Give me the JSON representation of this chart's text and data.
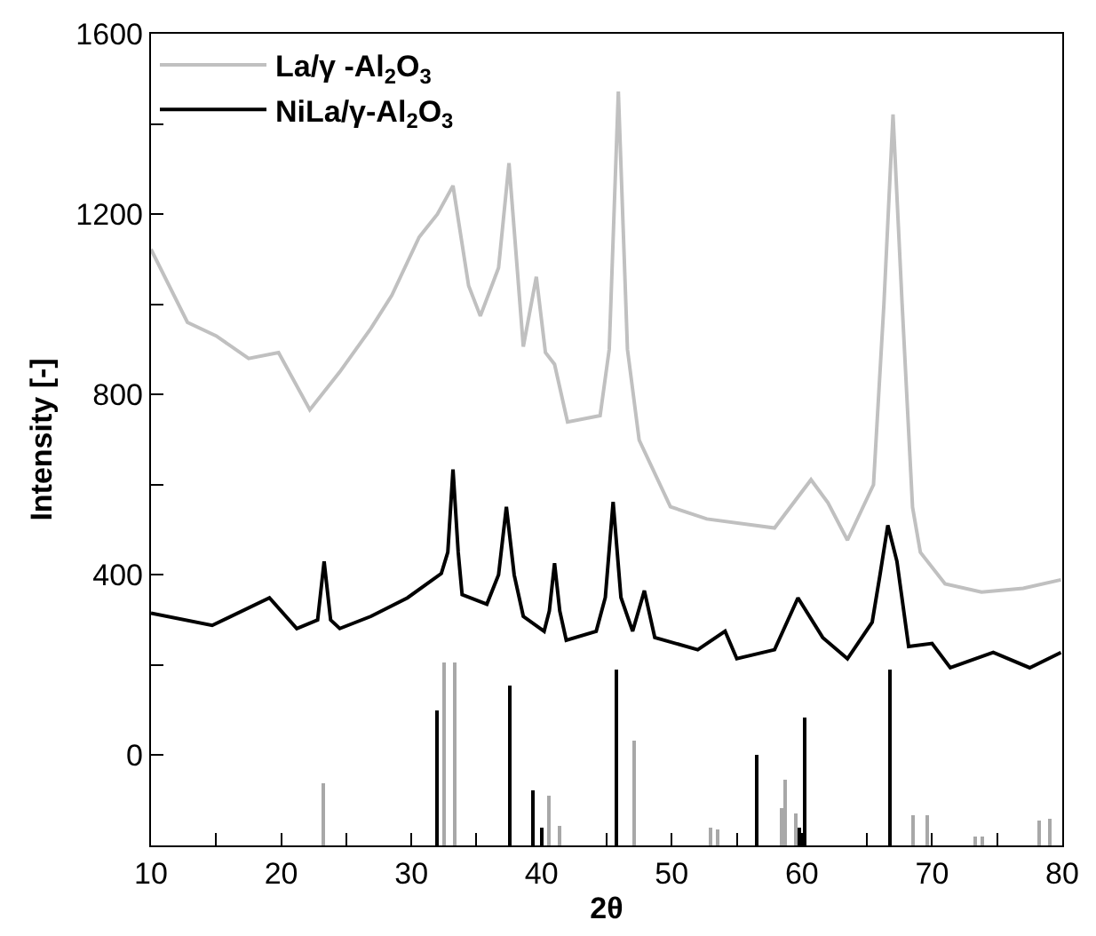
{
  "chart_data": {
    "type": "line",
    "xlabel": "2θ",
    "ylabel": "Intensity [-]",
    "xlim": [
      10,
      80
    ],
    "ylim": [
      -200,
      1600
    ],
    "xticks": [
      10,
      {
        "value": 15,
        "label": null
      },
      20,
      {
        "value": 25,
        "label": null
      },
      30,
      {
        "value": 35,
        "label": null
      },
      40,
      {
        "value": 45,
        "label": null
      },
      50,
      {
        "value": 55,
        "label": null
      },
      60,
      {
        "value": 65,
        "label": null
      },
      70,
      {
        "value": 75,
        "label": null
      },
      80
    ],
    "yticks": [
      {
        "value": -200,
        "label": null
      },
      0,
      {
        "value": 200,
        "label": null
      },
      400,
      {
        "value": 600,
        "label": null
      },
      800,
      {
        "value": 1000,
        "label": null
      },
      1200,
      {
        "value": 1400,
        "label": null
      },
      1600
    ],
    "grid": false,
    "legend": "top left",
    "marker": "none",
    "line_style": "solid",
    "series": [
      {
        "name": "La/γ -Al$_{2}$O$_{3}$",
        "color": "#c0c0c0",
        "x": [
          10,
          12.8,
          15,
          17.5,
          19.8,
          22.2,
          24.5,
          26.9,
          28.5,
          30.6,
          32,
          33.2,
          34.4,
          35.3,
          36.7,
          37.5,
          38.6,
          39.6,
          40.3,
          41,
          42,
          44.5,
          45.2,
          45.9,
          46.6,
          47.5,
          49.9,
          52.7,
          57.9,
          60.7,
          62,
          63.5,
          65.5,
          66.3,
          67,
          67.7,
          68.5,
          69.1,
          71,
          73.8,
          77,
          79.9
        ],
        "values": [
          1122,
          960,
          930,
          880,
          893,
          766,
          850,
          947,
          1020,
          1149,
          1200,
          1263,
          1041,
          974,
          1081,
          1313,
          906,
          1061,
          893,
          867,
          739,
          753,
          900,
          1472,
          900,
          699,
          551,
          524,
          504,
          611,
          560,
          477,
          600,
          1000,
          1421,
          1000,
          550,
          450,
          380,
          362,
          370,
          389
        ]
      },
      {
        "name": "NiLa/γ-Al$_{2}$O$_{3}$",
        "color": "#000000",
        "x": [
          10,
          14.7,
          19.1,
          21.2,
          22.8,
          23.3,
          23.8,
          24.5,
          26.9,
          29.7,
          32.3,
          32.8,
          33.2,
          33.6,
          33.9,
          35.8,
          36.7,
          37.3,
          37.9,
          38.6,
          40.2,
          40.6,
          41.0,
          41.4,
          41.9,
          44.2,
          44.9,
          45.5,
          46.1,
          47.0,
          47.9,
          48.7,
          52.0,
          54.1,
          55.0,
          57.9,
          59.7,
          61.6,
          63.5,
          65.4,
          66.0,
          66.6,
          67.3,
          68.2,
          70.0,
          71.4,
          74.7,
          77.5,
          79.9
        ],
        "values": [
          315,
          288,
          349,
          281,
          300,
          430,
          300,
          281,
          308,
          349,
          403,
          450,
          634,
          450,
          356,
          335,
          400,
          551,
          400,
          308,
          275,
          320,
          426,
          320,
          255,
          275,
          350,
          562,
          350,
          275,
          365,
          261,
          234,
          275,
          214,
          234,
          349,
          261,
          214,
          295,
          400,
          510,
          430,
          241,
          248,
          194,
          228,
          194,
          228
        ]
      },
      {
        "color": "#a8a8a8",
        "type": "bar",
        "x": [
          23.3,
          32.6,
          33.4,
          40.6,
          41.4,
          47.2,
          53.0,
          53.5,
          58.4,
          58.7,
          59.5,
          68.6,
          69.6,
          73.4,
          73.9,
          78.3,
          79.0
        ],
        "base": [
          -200,
          -200,
          -200,
          -200,
          -200,
          -200,
          -200,
          -200,
          -200,
          -200,
          -200,
          -200,
          -200,
          -200,
          -200,
          -200,
          -200
        ],
        "values": [
          138,
          405,
          405,
          109,
          44,
          232,
          38,
          34,
          82,
          145,
          70,
          66,
          66,
          21,
          21,
          55,
          60
        ]
      },
      {
        "color": "#000000",
        "type": "bar",
        "x": [
          32.0,
          37.6,
          39.4,
          40.0,
          45.8,
          56.6,
          59.8,
          60.3,
          66.8
        ],
        "base": [
          -200,
          -200,
          -200,
          -200,
          -200,
          -200,
          -200,
          -200,
          -200
        ],
        "values": [
          298,
          353,
          124,
          39,
          388,
          200,
          39,
          283,
          388
        ]
      }
    ]
  }
}
